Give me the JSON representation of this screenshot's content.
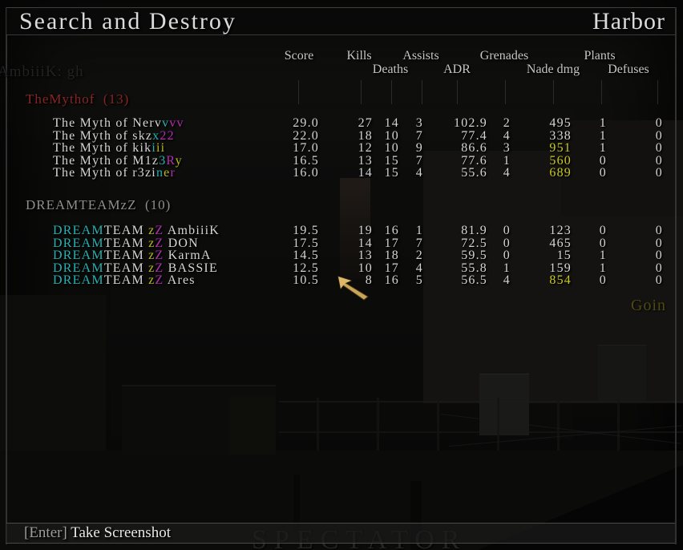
{
  "window": {
    "title": "Search and Destroy",
    "map": "Harbor"
  },
  "chat_line": "AmbiiiK: gh",
  "columns": {
    "score": "Score",
    "kills": "Kills",
    "assists": "Assists",
    "grenades": "Grenades",
    "plants": "Plants",
    "deaths": "Deaths",
    "adr": "ADR",
    "nade_dmg": "Nade dmg",
    "defuses": "Defuses"
  },
  "palette": {
    "w": "#d6d6d6",
    "c": "#2ab1b1",
    "m": "#b32fb3",
    "y": "#b9b920",
    "sy": "#c9c91f",
    "red": "#8b2525",
    "grey": "#8f8f8f"
  },
  "teams": [
    {
      "name": "TheMythof",
      "score_label": "(13)",
      "color_key": "red",
      "players": [
        {
          "parts": [
            [
              "The Myth of Nerv",
              "w"
            ],
            [
              "v",
              "c"
            ],
            [
              "vv",
              "m"
            ]
          ],
          "stats": {
            "score": "29.0",
            "kills": "27",
            "deaths": "14",
            "assists": "3",
            "adr": "102.9",
            "grenades": "2",
            "nade": "495",
            "plants": "1",
            "defuses": "0"
          },
          "nade_color": "w"
        },
        {
          "parts": [
            [
              "The Myth of skz",
              "w"
            ],
            [
              "x",
              "c"
            ],
            [
              "22",
              "m"
            ]
          ],
          "stats": {
            "score": "22.0",
            "kills": "18",
            "deaths": "10",
            "assists": "7",
            "adr": "77.4",
            "grenades": "4",
            "nade": "338",
            "plants": "1",
            "defuses": "0"
          },
          "nade_color": "w"
        },
        {
          "parts": [
            [
              "The Myth of kik",
              "w"
            ],
            [
              "i",
              "c"
            ],
            [
              "ii",
              "y"
            ]
          ],
          "stats": {
            "score": "17.0",
            "kills": "12",
            "deaths": "10",
            "assists": "9",
            "adr": "86.6",
            "grenades": "3",
            "nade": "951",
            "plants": "1",
            "defuses": "0"
          },
          "nade_color": "sy"
        },
        {
          "parts": [
            [
              "The Myth of M1z",
              "w"
            ],
            [
              "3",
              "c"
            ],
            [
              "R",
              "m"
            ],
            [
              "y",
              "y"
            ]
          ],
          "stats": {
            "score": "16.5",
            "kills": "13",
            "deaths": "15",
            "assists": "7",
            "adr": "77.6",
            "grenades": "1",
            "nade": "560",
            "plants": "0",
            "defuses": "0"
          },
          "nade_color": "sy"
        },
        {
          "parts": [
            [
              "The Myth of r3zi",
              "w"
            ],
            [
              "n",
              "c"
            ],
            [
              "e",
              "y"
            ],
            [
              "r",
              "m"
            ]
          ],
          "stats": {
            "score": "16.0",
            "kills": "14",
            "deaths": "15",
            "assists": "4",
            "adr": "55.6",
            "grenades": "4",
            "nade": "689",
            "plants": "0",
            "defuses": "0"
          },
          "nade_color": "sy"
        }
      ]
    },
    {
      "name": "DREAMTEAMzZ",
      "score_label": "(10)",
      "color_key": "grey",
      "players": [
        {
          "parts": [
            [
              "DREAM",
              "c"
            ],
            [
              "TEAM ",
              "w"
            ],
            [
              "z",
              "y"
            ],
            [
              "Z",
              "m"
            ],
            [
              " AmbiiiK",
              "w"
            ]
          ],
          "stats": {
            "score": "19.5",
            "kills": "19",
            "deaths": "16",
            "assists": "1",
            "adr": "81.9",
            "grenades": "0",
            "nade": "123",
            "plants": "0",
            "defuses": "0"
          },
          "nade_color": "w"
        },
        {
          "parts": [
            [
              "DREAM",
              "c"
            ],
            [
              "TEAM ",
              "w"
            ],
            [
              "z",
              "y"
            ],
            [
              "Z",
              "m"
            ],
            [
              " DON",
              "w"
            ]
          ],
          "stats": {
            "score": "17.5",
            "kills": "14",
            "deaths": "17",
            "assists": "7",
            "adr": "72.5",
            "grenades": "0",
            "nade": "465",
            "plants": "0",
            "defuses": "0"
          },
          "nade_color": "w"
        },
        {
          "parts": [
            [
              "DREAM",
              "c"
            ],
            [
              "TEAM ",
              "w"
            ],
            [
              "z",
              "y"
            ],
            [
              "Z",
              "m"
            ],
            [
              " KarmA",
              "w"
            ]
          ],
          "stats": {
            "score": "14.5",
            "kills": "13",
            "deaths": "18",
            "assists": "2",
            "adr": "59.5",
            "grenades": "0",
            "nade": "15",
            "plants": "1",
            "defuses": "0"
          },
          "nade_color": "w"
        },
        {
          "parts": [
            [
              "DREAM",
              "c"
            ],
            [
              "TEAM ",
              "w"
            ],
            [
              "z",
              "y"
            ],
            [
              "Z",
              "m"
            ],
            [
              " BASSIE",
              "w"
            ]
          ],
          "stats": {
            "score": "12.5",
            "kills": "10",
            "deaths": "17",
            "assists": "4",
            "adr": "55.8",
            "grenades": "1",
            "nade": "159",
            "plants": "1",
            "defuses": "0"
          },
          "nade_color": "w"
        },
        {
          "parts": [
            [
              "DREAM",
              "c"
            ],
            [
              "TEAM ",
              "w"
            ],
            [
              "z",
              "y"
            ],
            [
              "Z",
              "m"
            ],
            [
              " Ares",
              "w"
            ]
          ],
          "stats": {
            "score": "10.5",
            "kills": "8",
            "deaths": "16",
            "assists": "5",
            "adr": "56.5",
            "grenades": "4",
            "nade": "854",
            "plants": "0",
            "defuses": "0"
          },
          "nade_color": "sy"
        }
      ]
    }
  ],
  "footer": {
    "key_hint": "[Enter] ",
    "action": "Take Screenshot"
  },
  "overlay": {
    "spectator": "SPECTATOR",
    "side_text": "Goin"
  }
}
